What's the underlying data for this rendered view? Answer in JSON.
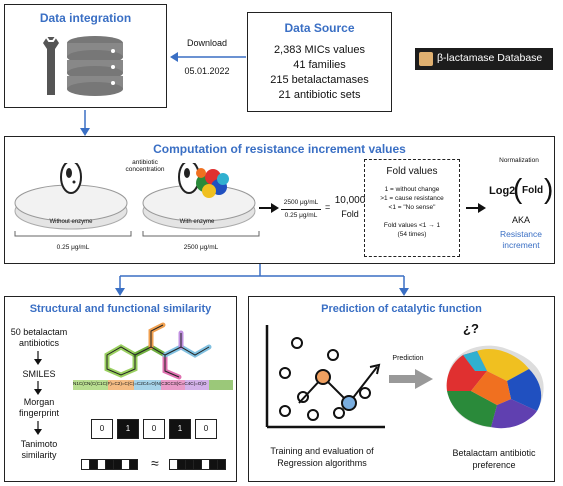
{
  "data_integration": {
    "title": "Data integration"
  },
  "download": {
    "label": "Download",
    "date": "05.01.2022"
  },
  "data_source": {
    "title": "Data Source",
    "lines": [
      "2,383 MICs values",
      "41 families",
      "215 betalactamases",
      "21 antibiotic sets"
    ]
  },
  "database_badge": {
    "label": "β-lactamase Database"
  },
  "computation": {
    "title": "Computation of resistance increment values",
    "antibiotic_concentration": "antibiotic\nconcentration",
    "without_enzyme": "Without enzyme",
    "with_enzyme": "With enzyme",
    "conc_low": "0.25 μg/mL",
    "conc_high": "2500 μg/mL",
    "fraction_num": "2500 μg/mL",
    "fraction_den": "0.25 μg/mL",
    "equals": "=",
    "fold_value": "10,000",
    "fold_word": "Fold",
    "fold_values_title": "Fold values",
    "fold_rule_1": "1 = without change",
    "fold_rule_2": ">1 = cause resistance",
    "fold_rule_3": "<1 = \"No sense\"",
    "fold_rule_4": "Fold values <1 → 1",
    "fold_rule_5": "(54 times)",
    "normalization": "Normalization",
    "log2": "Log2",
    "fold_paren": "Fold",
    "aka": "AKA",
    "resistance_increment": "Resistance increment"
  },
  "structural": {
    "title": "Structural and functional similarity",
    "step1": "50 betalactam antibiotics",
    "step2": "SMILES",
    "step3": "Morgan fingerprint",
    "step4": "Tanimoto similarity",
    "smiles_string": "N1C(CN(C(C1C(F)=C2)=C(C)=C2C4=O)N(C3CCS)C=C4C(=O)O",
    "bits": [
      "0",
      "1",
      "0",
      "1",
      "0"
    ],
    "approx": "≈"
  },
  "prediction": {
    "title": "Prediction of catalytic function",
    "prediction_label": "Prediction",
    "question": "¿?",
    "left_caption": "Training and evaluation of Regression algorithms",
    "right_caption": "Betalactam antibiotic preference"
  },
  "colors": {
    "accent": "#3a6fc4",
    "orange_node": "#f0a060",
    "blue_node": "#7aaee0"
  }
}
